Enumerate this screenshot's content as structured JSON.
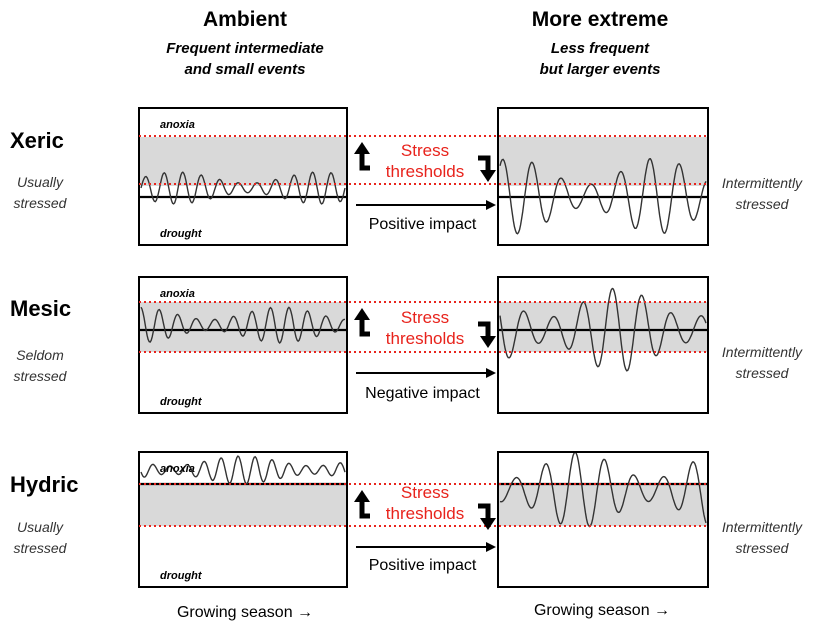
{
  "columns": {
    "ambient": {
      "title": "Ambient",
      "subtitle_line1": "Frequent intermediate",
      "subtitle_line2": "and small events"
    },
    "extreme": {
      "title": "More extreme",
      "subtitle_line1": "Less frequent",
      "subtitle_line2": "but larger events"
    }
  },
  "rows": [
    {
      "id": "xeric",
      "name": "Xeric",
      "ambient_note_line1": "Usually",
      "ambient_note_line2": "stressed",
      "extreme_note_line1": "Intermittently",
      "extreme_note_line2": "stressed",
      "stress_line1": "Stress",
      "stress_line2": "thresholds",
      "impact": "Positive impact"
    },
    {
      "id": "mesic",
      "name": "Mesic",
      "ambient_note_line1": "Seldom",
      "ambient_note_line2": "stressed",
      "extreme_note_line1": "Intermittently",
      "extreme_note_line2": "stressed",
      "stress_line1": "Stress",
      "stress_line2": "thresholds",
      "impact": "Negative impact"
    },
    {
      "id": "hydric",
      "name": "Hydric",
      "ambient_note_line1": "Usually",
      "ambient_note_line2": "stressed",
      "extreme_note_line1": "Intermittently",
      "extreme_note_line2": "stressed",
      "stress_line1": "Stress",
      "stress_line2": "thresholds",
      "impact": "Positive impact"
    }
  ],
  "panel_labels": {
    "top": "anoxia",
    "bottom": "drought"
  },
  "footer": {
    "ambient": "Growing season →",
    "extreme": "Growing season →"
  },
  "colors": {
    "threshold_line": "#e8231c",
    "band_fill": "#d9d9d9",
    "stress_text": "#e8231c"
  }
}
